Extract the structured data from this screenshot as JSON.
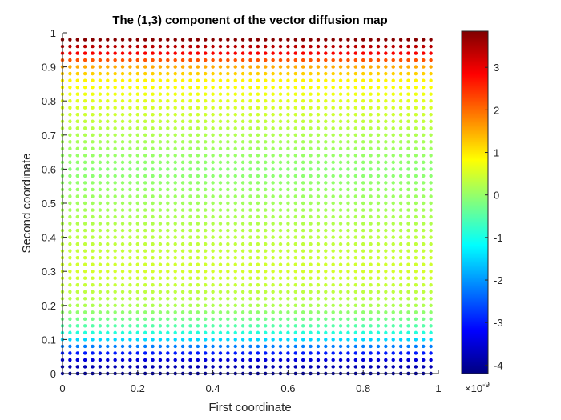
{
  "chart_data": {
    "type": "scatter",
    "title": "The (1,3) component of the vector diffusion map",
    "xlabel": "First coordinate",
    "ylabel": "Second coordinate",
    "xlim": [
      0,
      1
    ],
    "ylim": [
      0,
      1
    ],
    "x_ticks": [
      "0",
      "0.2",
      "0.4",
      "0.6",
      "0.8",
      "1"
    ],
    "y_ticks": [
      "0",
      "0.1",
      "0.2",
      "0.3",
      "0.4",
      "0.5",
      "0.6",
      "0.7",
      "0.8",
      "0.9",
      "1"
    ],
    "grid": false,
    "colormap": "jet",
    "colorbar": {
      "clim": [
        -4.2,
        3.85
      ],
      "ticks": [
        "-4",
        "-3",
        "-2",
        "-1",
        "0",
        "1",
        "2",
        "3"
      ],
      "exponent_label": "×10",
      "exponent_power": "-9"
    },
    "points": {
      "x_range": [
        0,
        0.98
      ],
      "y_range": [
        0,
        0.98
      ],
      "step": 0.02,
      "value_profile": [
        {
          "y": 0.0,
          "value": -4.0
        },
        {
          "y": 0.02,
          "value": -3.8
        },
        {
          "y": 0.04,
          "value": -3.5
        },
        {
          "y": 0.06,
          "value": -3.0
        },
        {
          "y": 0.08,
          "value": -2.2
        },
        {
          "y": 0.1,
          "value": -1.5
        },
        {
          "y": 0.12,
          "value": -0.9
        },
        {
          "y": 0.14,
          "value": -0.5
        },
        {
          "y": 0.2,
          "value": 0.2
        },
        {
          "y": 0.3,
          "value": 0.5
        },
        {
          "y": 0.4,
          "value": 0.3
        },
        {
          "y": 0.5,
          "value": 0.1
        },
        {
          "y": 0.6,
          "value": -0.1
        },
        {
          "y": 0.7,
          "value": 0.2
        },
        {
          "y": 0.8,
          "value": 0.6
        },
        {
          "y": 0.86,
          "value": 0.9
        },
        {
          "y": 0.9,
          "value": 1.5
        },
        {
          "y": 0.92,
          "value": 2.2
        },
        {
          "y": 0.94,
          "value": 2.9
        },
        {
          "y": 0.96,
          "value": 3.4
        },
        {
          "y": 0.98,
          "value": 3.8
        }
      ]
    }
  },
  "colors": {
    "axis": "#262626",
    "background": "#ffffff"
  }
}
